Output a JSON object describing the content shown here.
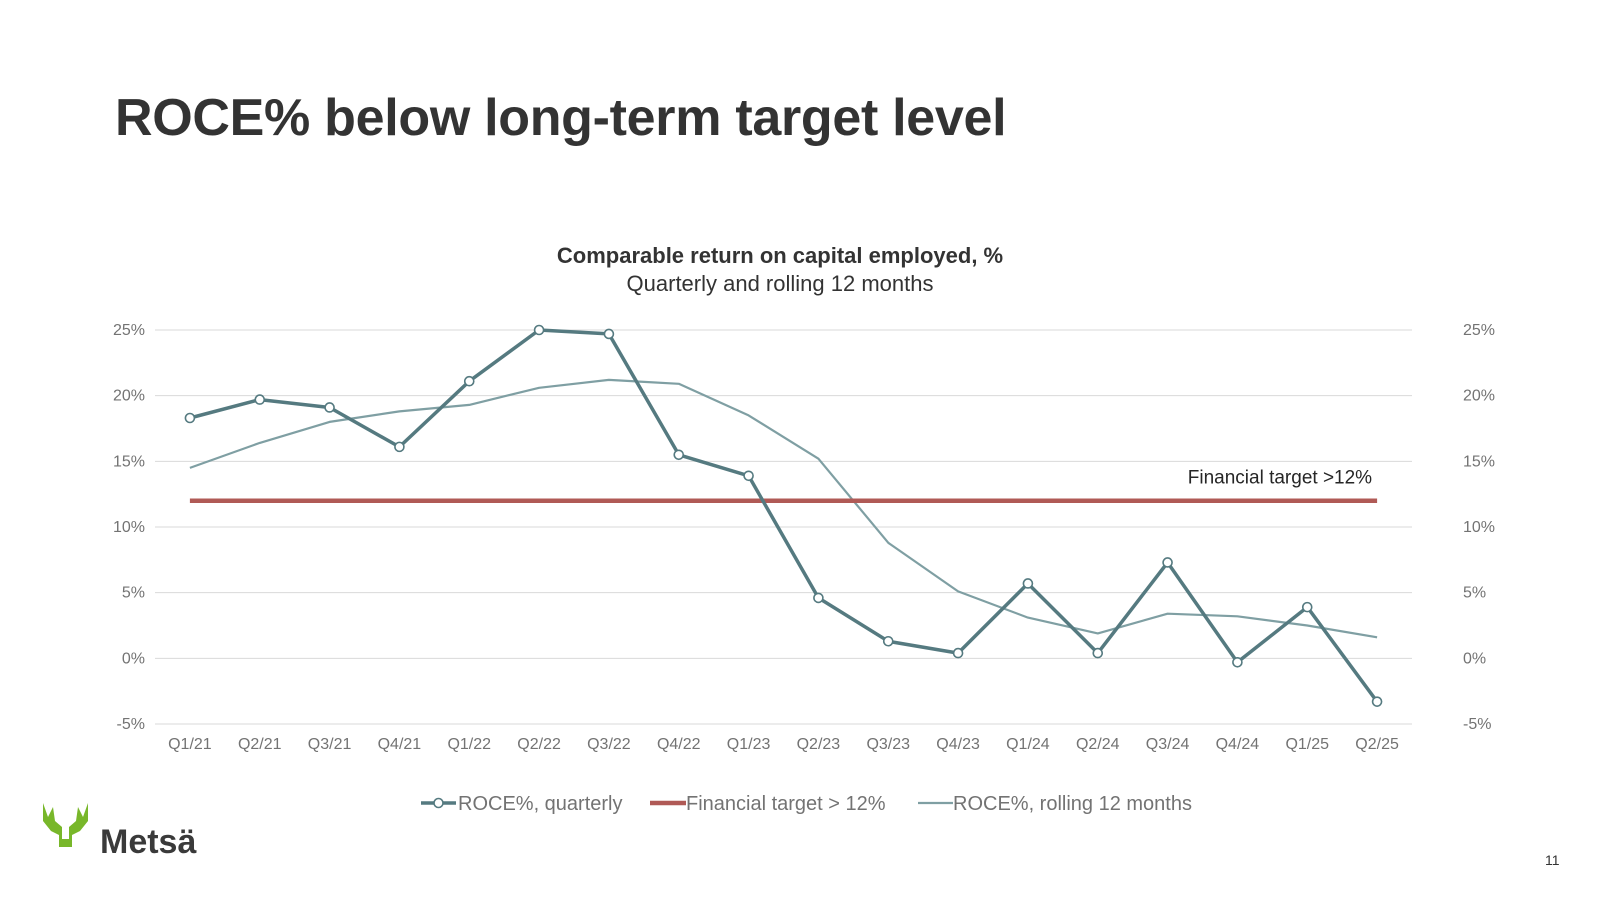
{
  "slide": {
    "title": "ROCE% below long-term target level",
    "page_number": "11",
    "logo_text": "Metsä"
  },
  "colors": {
    "quarterly": "#557a80",
    "rolling": "#7f9fa3",
    "target": "#b05a56",
    "grid": "#d9d9d9",
    "axis_text": "#737373",
    "logo_green": "#78b72a",
    "logo_text": "#3a3a3a"
  },
  "chart_data": {
    "type": "line",
    "title": "Comparable return on capital employed, %",
    "subtitle": "Quarterly and rolling 12 months",
    "categories": [
      "Q1/21",
      "Q2/21",
      "Q3/21",
      "Q4/21",
      "Q1/22",
      "Q2/22",
      "Q3/22",
      "Q4/22",
      "Q1/23",
      "Q2/23",
      "Q3/23",
      "Q4/23",
      "Q1/24",
      "Q2/24",
      "Q3/24",
      "Q4/24",
      "Q1/25",
      "Q2/25"
    ],
    "series": [
      {
        "name": "ROCE%, quarterly",
        "values": [
          18.3,
          19.7,
          19.1,
          16.1,
          21.1,
          25.0,
          24.7,
          15.5,
          13.9,
          4.6,
          1.3,
          0.4,
          5.7,
          0.4,
          7.3,
          -0.3,
          3.9,
          -3.3
        ]
      },
      {
        "name": "Financial target > 12%",
        "values": [
          12,
          12,
          12,
          12,
          12,
          12,
          12,
          12,
          12,
          12,
          12,
          12,
          12,
          12,
          12,
          12,
          12,
          12
        ]
      },
      {
        "name": "ROCE%, rolling 12 months",
        "values": [
          14.5,
          16.4,
          18.0,
          18.8,
          19.3,
          20.6,
          21.2,
          20.9,
          18.5,
          15.2,
          8.8,
          5.1,
          3.1,
          1.9,
          3.4,
          3.2,
          2.5,
          1.6
        ]
      }
    ],
    "ylim": [
      -5,
      25
    ],
    "yticks": [
      "-5%",
      "0%",
      "5%",
      "10%",
      "15%",
      "20%",
      "25%"
    ],
    "secondary_yticks": [
      "-5%",
      "0%",
      "5%",
      "10%",
      "15%",
      "20%",
      "25%"
    ],
    "annotation": "Financial target >12%",
    "xlabel": "",
    "ylabel": "",
    "grid": true,
    "legend_position": "bottom"
  }
}
